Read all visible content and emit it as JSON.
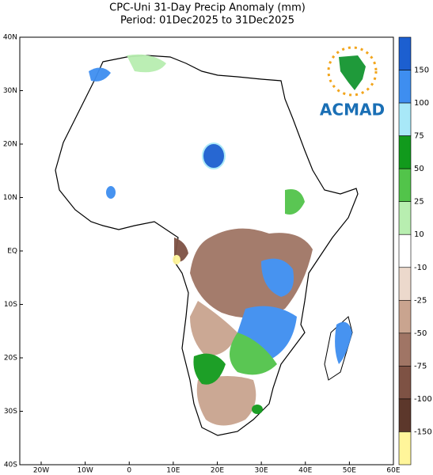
{
  "header": {
    "title": "CPC-Uni 31-Day Precip Anomaly (mm)",
    "subtitle": "Period: 01Dec2025 to 31Dec2025"
  },
  "map": {
    "lat_labels": [
      "40N",
      "30N",
      "20N",
      "10N",
      "EQ",
      "10S",
      "20S",
      "30S",
      "40S"
    ],
    "lon_labels": [
      "20W",
      "10W",
      "0",
      "10E",
      "20E",
      "30E",
      "40E",
      "50E",
      "60E"
    ]
  },
  "colorbar": {
    "levels": [
      150,
      100,
      75,
      50,
      25,
      10,
      -10,
      -25,
      -50,
      -75,
      -100,
      -150
    ],
    "colors": [
      "#1c5fd0",
      "#3e8ef0",
      "#a8e8f8",
      "#119a1c",
      "#52c44a",
      "#b8eeb0",
      "#ffffff",
      "#ecd9cc",
      "#c9a48f",
      "#a07565",
      "#7e5244",
      "#5c372b",
      "#fff59a"
    ]
  },
  "logo": {
    "text": "ACMAD"
  }
}
